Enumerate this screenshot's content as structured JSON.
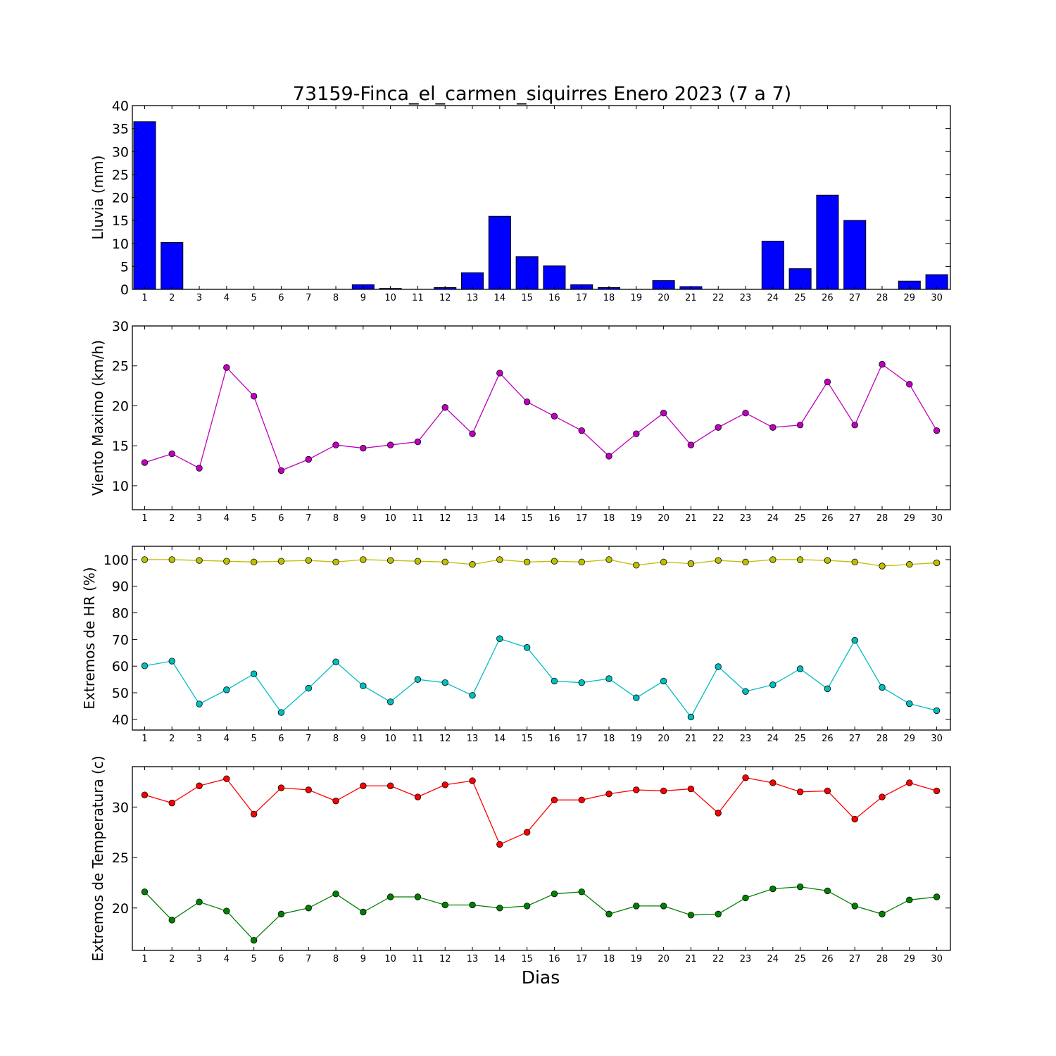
{
  "title": "73159-Finca_el_carmen_siquirres Enero 2023  (7 a 7)",
  "xlabel": "Dias",
  "chart_data": [
    {
      "type": "bar",
      "ylabel": "Lluvia (mm)",
      "ylim": [
        0,
        40
      ],
      "yticks": [
        0,
        5,
        10,
        15,
        20,
        25,
        30,
        35,
        40
      ],
      "categories": [
        1,
        2,
        3,
        4,
        5,
        6,
        7,
        8,
        9,
        10,
        11,
        12,
        13,
        14,
        15,
        16,
        17,
        18,
        19,
        20,
        21,
        22,
        23,
        24,
        25,
        26,
        27,
        28,
        29,
        30
      ],
      "series": [
        {
          "color": "#0000ff",
          "values": [
            36.5,
            10.2,
            0,
            0,
            0,
            0,
            0,
            0,
            1.0,
            0.2,
            0,
            0.4,
            3.6,
            15.9,
            7.1,
            5.1,
            1.0,
            0.4,
            0,
            1.9,
            0.6,
            0,
            0,
            10.5,
            4.5,
            20.5,
            15.0,
            0,
            1.8,
            3.2
          ]
        }
      ]
    },
    {
      "type": "line",
      "ylabel": "Viento Maximo (km/h)",
      "ylim": [
        7,
        30
      ],
      "yticks": [
        10,
        15,
        20,
        25,
        30
      ],
      "x": [
        1,
        2,
        3,
        4,
        5,
        6,
        7,
        8,
        9,
        10,
        11,
        12,
        13,
        14,
        15,
        16,
        17,
        18,
        19,
        20,
        21,
        22,
        23,
        24,
        25,
        26,
        27,
        28,
        29,
        30
      ],
      "series": [
        {
          "color": "#bf00bf",
          "values": [
            12.9,
            14.0,
            12.2,
            24.8,
            21.2,
            11.9,
            13.3,
            15.1,
            14.7,
            15.1,
            15.5,
            19.8,
            16.5,
            24.1,
            20.5,
            18.7,
            16.9,
            13.7,
            16.5,
            19.1,
            15.1,
            17.3,
            19.1,
            17.3,
            17.6,
            23.0,
            17.6,
            25.2,
            22.7,
            16.9
          ]
        }
      ]
    },
    {
      "type": "line",
      "ylabel": "Extremos de HR (%)",
      "ylim": [
        36,
        105
      ],
      "yticks": [
        40,
        50,
        60,
        70,
        80,
        90,
        100
      ],
      "x": [
        1,
        2,
        3,
        4,
        5,
        6,
        7,
        8,
        9,
        10,
        11,
        12,
        13,
        14,
        15,
        16,
        17,
        18,
        19,
        20,
        21,
        22,
        23,
        24,
        25,
        26,
        27,
        28,
        29,
        30
      ],
      "series": [
        {
          "color": "#bfbf00",
          "values": [
            100,
            100,
            99.7,
            99.4,
            99.1,
            99.4,
            99.7,
            99.1,
            100,
            99.7,
            99.4,
            99.1,
            98.2,
            100,
            99.1,
            99.4,
            99.1,
            100,
            97.9,
            99.1,
            98.5,
            99.7,
            99.1,
            100,
            100,
            99.7,
            99.1,
            97.6,
            98.2,
            98.8
          ]
        },
        {
          "color": "#00bfbf",
          "values": [
            60.1,
            61.9,
            45.8,
            51.1,
            57.1,
            42.6,
            51.7,
            61.6,
            52.6,
            46.6,
            55.0,
            53.8,
            49.0,
            70.3,
            67.0,
            54.4,
            53.8,
            55.3,
            48.1,
            54.4,
            40.9,
            59.8,
            50.5,
            53.0,
            59.0,
            51.5,
            69.7,
            52.0,
            45.9,
            43.3
          ]
        }
      ]
    },
    {
      "type": "line",
      "ylabel": "Extremos de Temperatura (c)",
      "ylim": [
        15.8,
        34
      ],
      "yticks": [
        20,
        25,
        30
      ],
      "x": [
        1,
        2,
        3,
        4,
        5,
        6,
        7,
        8,
        9,
        10,
        11,
        12,
        13,
        14,
        15,
        16,
        17,
        18,
        19,
        20,
        21,
        22,
        23,
        24,
        25,
        26,
        27,
        28,
        29,
        30
      ],
      "series": [
        {
          "color": "#ff0000",
          "values": [
            31.2,
            30.4,
            32.1,
            32.8,
            29.3,
            31.9,
            31.7,
            30.6,
            32.1,
            32.1,
            31.0,
            32.2,
            32.6,
            26.3,
            27.5,
            30.7,
            30.7,
            31.3,
            31.7,
            31.6,
            31.8,
            29.4,
            32.9,
            32.4,
            31.5,
            31.6,
            28.8,
            31.0,
            32.4,
            31.6
          ]
        },
        {
          "color": "#008000",
          "values": [
            21.6,
            18.8,
            20.6,
            19.7,
            16.8,
            19.4,
            20.0,
            21.4,
            19.6,
            21.1,
            21.1,
            20.3,
            20.3,
            20.0,
            20.2,
            21.4,
            21.6,
            19.4,
            20.2,
            20.2,
            19.3,
            19.4,
            21.0,
            21.9,
            22.1,
            21.7,
            20.2,
            19.4,
            20.8,
            21.1
          ]
        }
      ]
    }
  ]
}
